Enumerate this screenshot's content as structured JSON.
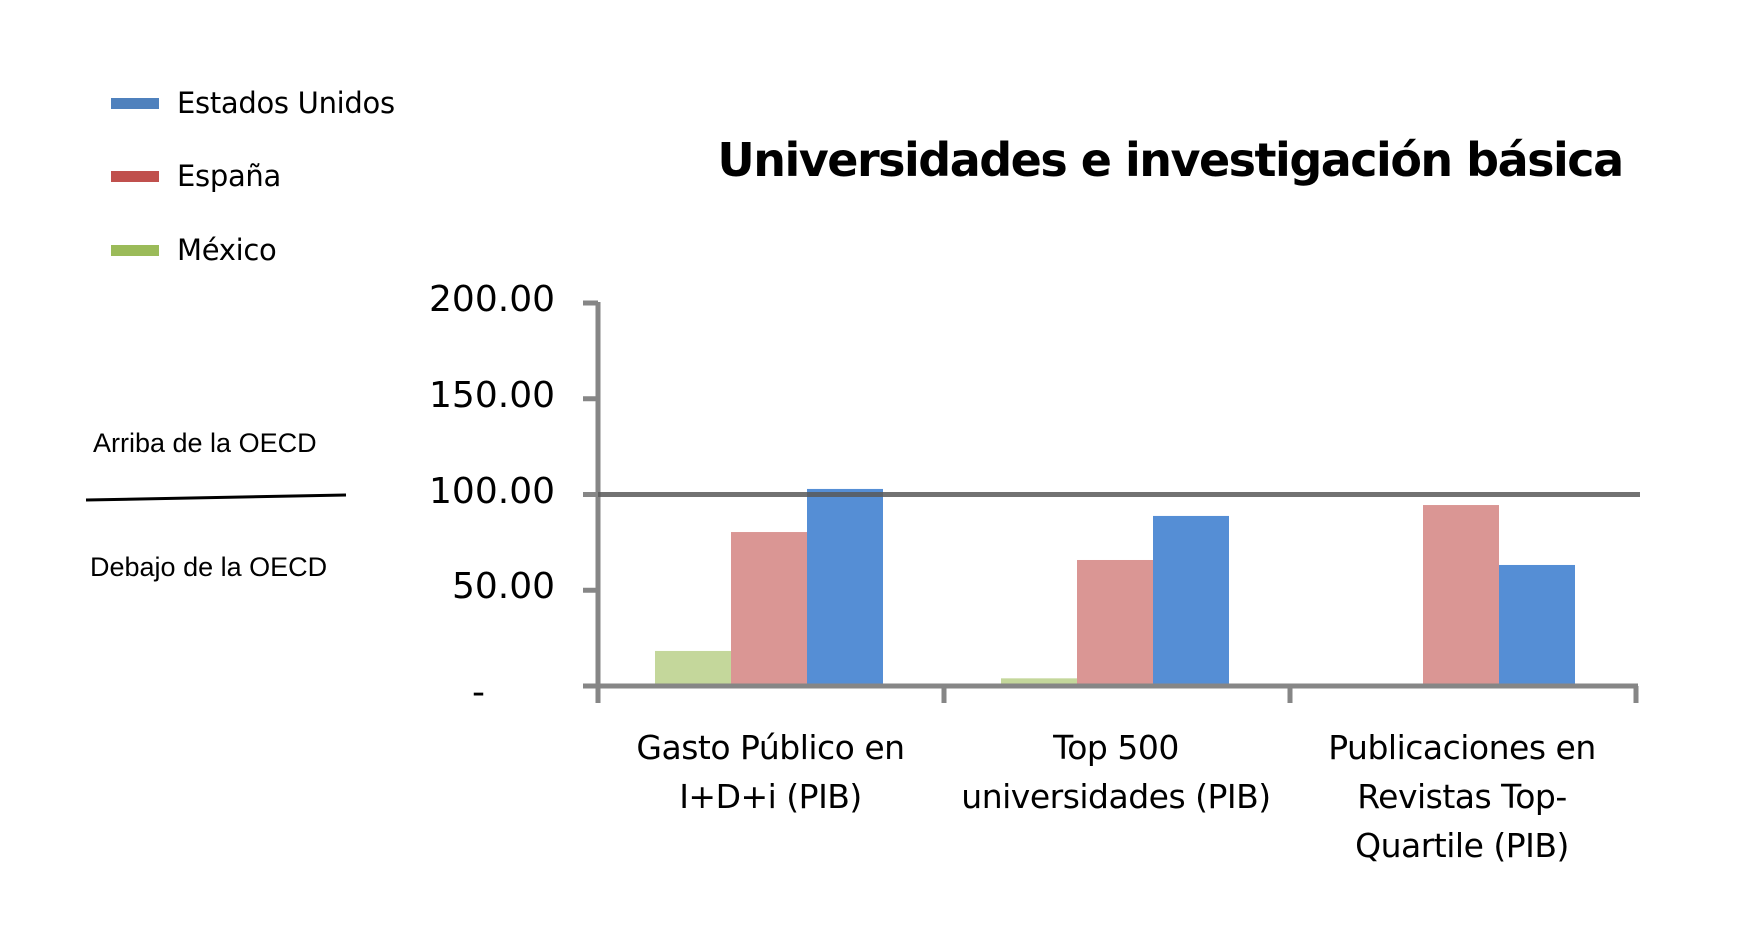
{
  "chart_data": {
    "type": "bar",
    "title": "Universidades e investigación básica",
    "xlabel": "",
    "ylabel": "",
    "ylim": [
      0,
      200
    ],
    "yticks": [
      0,
      50,
      100,
      150,
      200
    ],
    "ytick_labels": [
      "-",
      "50.00",
      "100.00",
      "150.00",
      "200.00"
    ],
    "grid": false,
    "legend_position": "top-left",
    "categories": [
      "Gasto Público en I+D+i (PIB)",
      "Top 500 universidades (PIB)",
      "Publicaciones en Revistas Top-Quartile (PIB)"
    ],
    "series": [
      {
        "name": "México",
        "color": "#c4d79b",
        "legend_color": "#9bbb59",
        "values": [
          18.3,
          4.0,
          0
        ]
      },
      {
        "name": "España",
        "color": "#da9694",
        "legend_color": "#c0504d",
        "values": [
          80.4,
          65.8,
          94.5
        ]
      },
      {
        "name": "Estados Unidos",
        "color": "#558ed5",
        "legend_color": "#4f81bd",
        "values": [
          102.9,
          88.8,
          63.2
        ]
      }
    ],
    "reference_line": {
      "value": 100,
      "label_above": "Arriba de la OECD",
      "label_below": "Debajo de la OECD"
    }
  },
  "title": "Universidades e investigación básica",
  "legend": [
    {
      "label": "Estados Unidos",
      "color": "#4f81bd"
    },
    {
      "label": "España",
      "color": "#c0504d"
    },
    {
      "label": "México",
      "color": "#9bbb59"
    }
  ],
  "oecd_annotation": {
    "above": "Arriba de la OECD",
    "below": "Debajo de la OECD"
  },
  "y_axis": {
    "labels": [
      "200.00",
      "150.00",
      "100.00",
      "50.00",
      "-"
    ]
  },
  "x_axis": {
    "labels": [
      "Gasto Público en\nI+D+i   (PIB)",
      "Top 500\nuniversidades (PIB)",
      "Publicaciones  en\nRevistas Top-\nQuartile (PIB)"
    ]
  }
}
